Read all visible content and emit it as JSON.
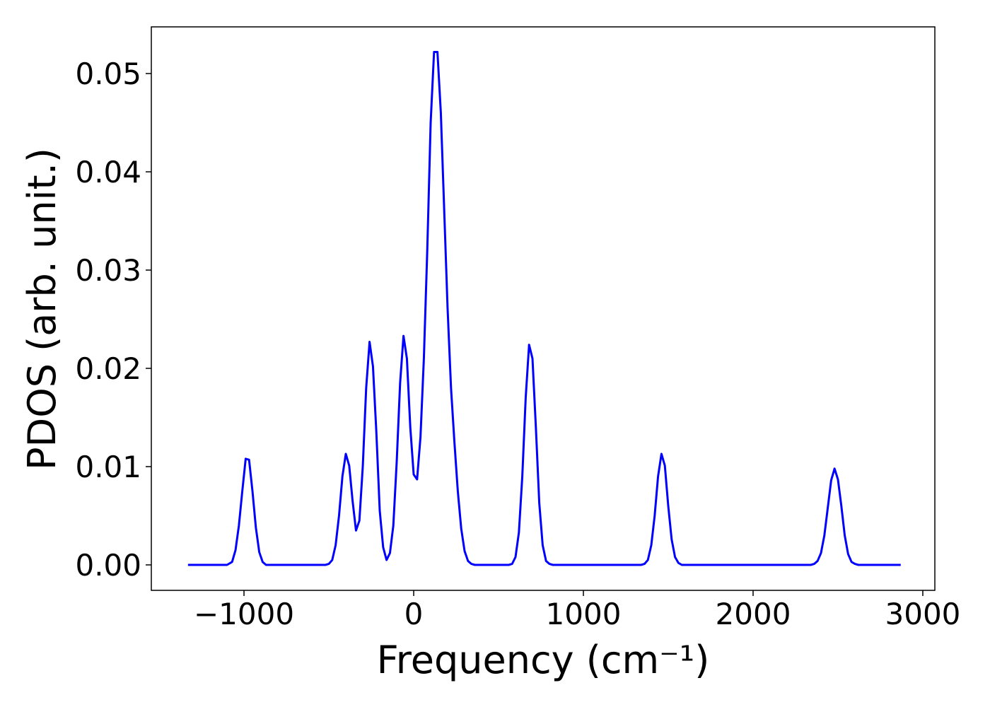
{
  "chart_data": {
    "type": "line",
    "xlabel": "Frequency (cm⁻¹)",
    "ylabel": "PDOS (arb. unit.)",
    "xlim": [
      -1546,
      3071
    ],
    "ylim": [
      -0.00259,
      0.05475
    ],
    "xticks": [
      {
        "value": -1000,
        "label": "−1000"
      },
      0,
      1000,
      2000,
      3000
    ],
    "yticks": [
      {
        "value": 0,
        "label": "0.00"
      },
      {
        "value": 0.01,
        "label": "0.01"
      },
      {
        "value": 0.02,
        "label": "0.02"
      },
      {
        "value": 0.03,
        "label": "0.03"
      },
      {
        "value": 0.04,
        "label": "0.04"
      },
      {
        "value": 0.05,
        "label": "0.05"
      }
    ],
    "grid": false,
    "x": [
      -1330,
      -1100,
      -1070,
      -1050,
      -1030,
      -1010,
      -990,
      -970,
      -950,
      -930,
      -910,
      -890,
      -870,
      -520,
      -500,
      -480,
      -460,
      -440,
      -420,
      -400,
      -380,
      -360,
      -340,
      -320,
      -300,
      -280,
      -260,
      -240,
      -220,
      -200,
      -180,
      -160,
      -140,
      -120,
      -100,
      -80,
      -60,
      -40,
      -20,
      0,
      20,
      40,
      60,
      80,
      100,
      120,
      140,
      160,
      180,
      200,
      220,
      240,
      260,
      280,
      300,
      320,
      340,
      360,
      560,
      580,
      600,
      620,
      640,
      660,
      680,
      700,
      720,
      740,
      760,
      780,
      800,
      820,
      1340,
      1360,
      1380,
      1400,
      1420,
      1440,
      1460,
      1480,
      1500,
      1520,
      1540,
      1560,
      1580,
      2340,
      2360,
      2380,
      2400,
      2420,
      2440,
      2460,
      2480,
      2500,
      2520,
      2540,
      2560,
      2580,
      2600,
      2620,
      2870
    ],
    "series": [
      {
        "name": "PDOS",
        "color": "#0000ff",
        "values": [
          0,
          0,
          0.0003,
          0.0015,
          0.004,
          0.0075,
          0.0108,
          0.0107,
          0.0075,
          0.0038,
          0.0013,
          0.0003,
          0,
          0,
          0.0001,
          0.0005,
          0.002,
          0.005,
          0.009,
          0.0113,
          0.0101,
          0.0065,
          0.0035,
          0.0045,
          0.01,
          0.018,
          0.0227,
          0.0202,
          0.0135,
          0.0055,
          0.0018,
          0.0005,
          0.0012,
          0.004,
          0.0105,
          0.0185,
          0.0233,
          0.021,
          0.014,
          0.0092,
          0.0087,
          0.013,
          0.021,
          0.032,
          0.045,
          0.0522,
          0.0522,
          0.046,
          0.036,
          0.026,
          0.018,
          0.0125,
          0.0075,
          0.0037,
          0.0014,
          0.0004,
          0.0001,
          0,
          0,
          0.0001,
          0.0008,
          0.0033,
          0.009,
          0.017,
          0.0224,
          0.021,
          0.014,
          0.0063,
          0.002,
          0.0004,
          0.0001,
          0,
          0,
          0.0001,
          0.0005,
          0.002,
          0.005,
          0.009,
          0.0113,
          0.0101,
          0.006,
          0.0026,
          0.0008,
          0.0002,
          0,
          0,
          0.0001,
          0.0004,
          0.0012,
          0.003,
          0.0058,
          0.0086,
          0.0098,
          0.0087,
          0.006,
          0.003,
          0.0011,
          0.0003,
          0.0001,
          0,
          0
        ]
      }
    ]
  }
}
